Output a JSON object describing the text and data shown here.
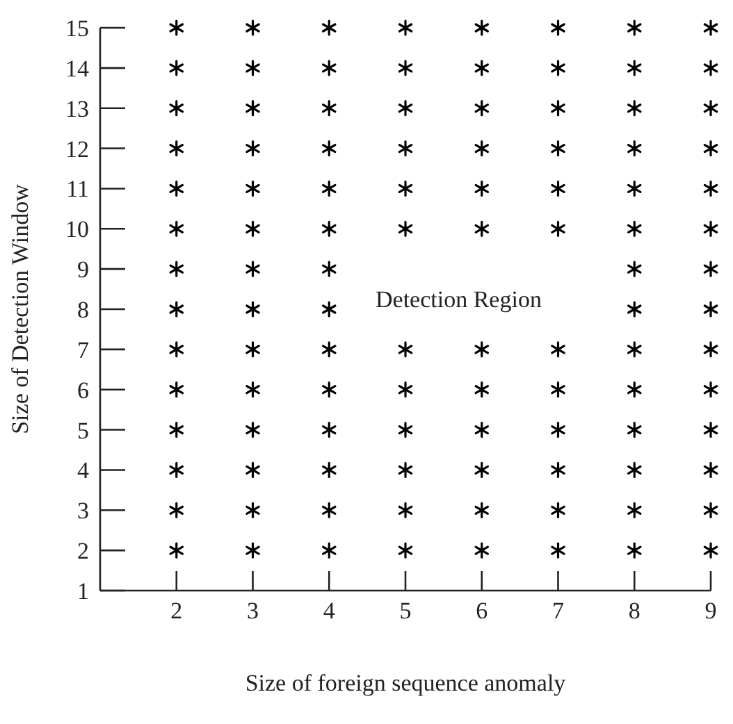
{
  "chart_data": {
    "type": "scatter",
    "xlabel": "Size of foreign sequence anomaly",
    "ylabel": "Size of Detection Window",
    "xlim": [
      1,
      9
    ],
    "ylim": [
      1,
      15
    ],
    "xticks": [
      2,
      3,
      4,
      5,
      6,
      7,
      8,
      9
    ],
    "yticks": [
      1,
      2,
      3,
      4,
      5,
      6,
      7,
      8,
      9,
      10,
      11,
      12,
      13,
      14,
      15
    ],
    "marker": "cross",
    "annotations": [
      "Detection Region"
    ],
    "series": [
      {
        "color": "#000000",
        "x": [
          2,
          2,
          2,
          2,
          2,
          2,
          2,
          2,
          2,
          2,
          2,
          2,
          2,
          2,
          3,
          3,
          3,
          3,
          3,
          3,
          3,
          3,
          3,
          3,
          3,
          3,
          3,
          3,
          4,
          4,
          4,
          4,
          4,
          4,
          4,
          4,
          4,
          4,
          4,
          4,
          4,
          4,
          5,
          5,
          5,
          5,
          5,
          5,
          5,
          5,
          5,
          5,
          5,
          5,
          6,
          6,
          6,
          6,
          6,
          6,
          6,
          6,
          6,
          6,
          6,
          6,
          7,
          7,
          7,
          7,
          7,
          7,
          7,
          7,
          7,
          7,
          7,
          7,
          8,
          8,
          8,
          8,
          8,
          8,
          8,
          8,
          8,
          8,
          8,
          8,
          8,
          8,
          9,
          9,
          9,
          9,
          9,
          9,
          9,
          9,
          9,
          9,
          9,
          9,
          9,
          9
        ],
        "values": [
          2,
          3,
          4,
          5,
          6,
          7,
          8,
          9,
          10,
          11,
          12,
          13,
          14,
          15,
          2,
          3,
          4,
          5,
          6,
          7,
          8,
          9,
          10,
          11,
          12,
          13,
          14,
          15,
          2,
          3,
          4,
          5,
          6,
          7,
          8,
          9,
          10,
          11,
          12,
          13,
          14,
          15,
          2,
          3,
          4,
          5,
          6,
          7,
          10,
          11,
          12,
          13,
          14,
          15,
          2,
          3,
          4,
          5,
          6,
          7,
          10,
          11,
          12,
          13,
          14,
          15,
          2,
          3,
          4,
          5,
          6,
          7,
          10,
          11,
          12,
          13,
          14,
          15,
          2,
          3,
          4,
          5,
          6,
          7,
          8,
          9,
          10,
          11,
          12,
          13,
          14,
          15,
          2,
          3,
          4,
          5,
          6,
          7,
          8,
          9,
          10,
          11,
          12,
          13,
          14,
          15
        ]
      }
    ]
  }
}
